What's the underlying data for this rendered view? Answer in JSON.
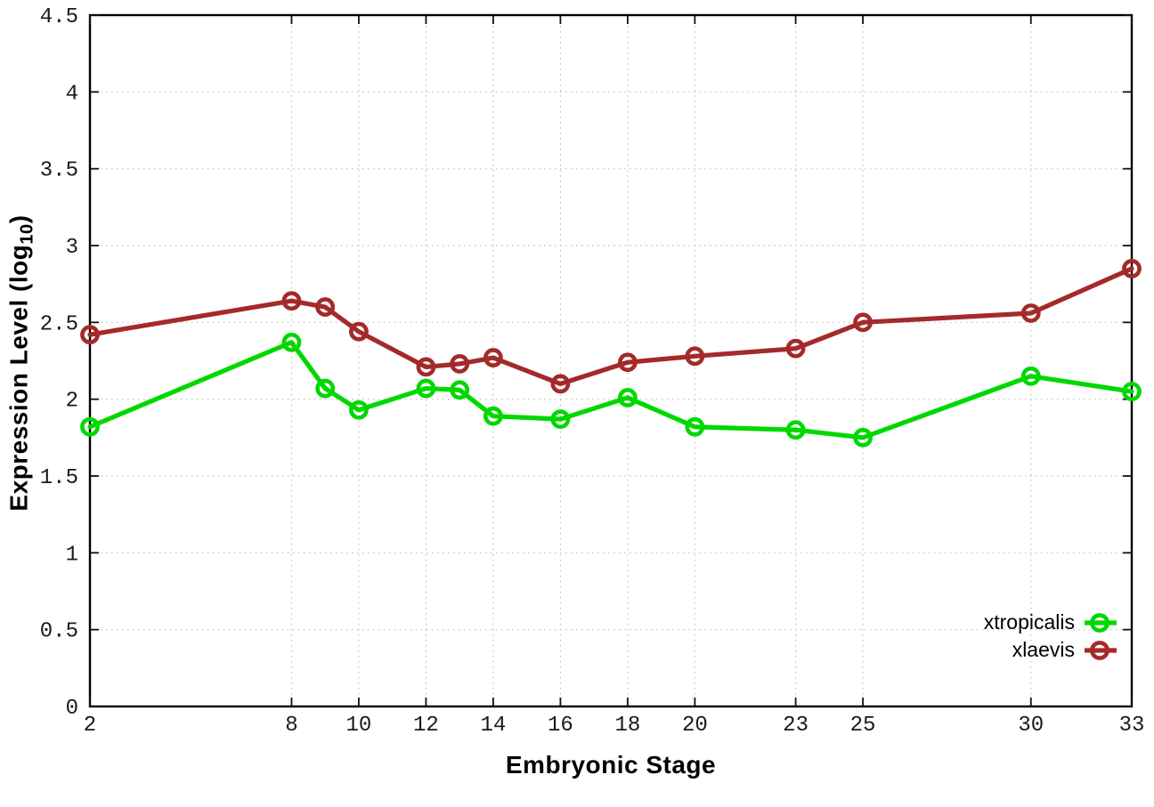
{
  "chart_data": {
    "type": "line",
    "title": "",
    "xlabel": "Embryonic Stage",
    "ylabel": "Expression Level (log10)",
    "ylabel_parts": {
      "prefix": "Expression Level (log",
      "sub": "10",
      "suffix": ")"
    },
    "x": [
      2,
      8,
      9,
      10,
      12,
      13,
      14,
      16,
      18,
      20,
      23,
      25,
      30,
      33
    ],
    "series": [
      {
        "name": "xtropicalis",
        "color": "#00d800",
        "values": [
          1.82,
          2.37,
          2.07,
          1.93,
          2.07,
          2.06,
          1.89,
          1.87,
          2.01,
          1.82,
          1.8,
          1.75,
          2.15,
          2.05
        ]
      },
      {
        "name": "xlaevis",
        "color": "#a42a2a",
        "values": [
          2.42,
          2.64,
          2.6,
          2.44,
          2.21,
          2.23,
          2.27,
          2.1,
          2.24,
          2.28,
          2.33,
          2.5,
          2.56,
          2.85
        ]
      }
    ],
    "xticks": [
      2,
      8,
      10,
      12,
      14,
      16,
      18,
      20,
      23,
      25,
      30,
      33
    ],
    "yticks": [
      0,
      0.5,
      1,
      1.5,
      2,
      2.5,
      3,
      3.5,
      4,
      4.5
    ],
    "xlim": [
      2,
      33
    ],
    "ylim": [
      0,
      4.5
    ],
    "grid": true,
    "legend_position": "bottom-right",
    "marker": "open-circle"
  }
}
